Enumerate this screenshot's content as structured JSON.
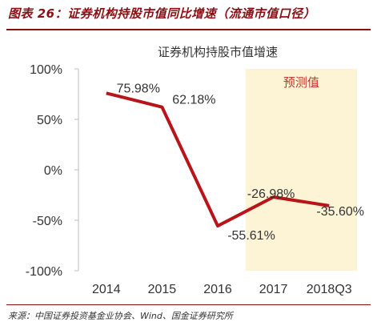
{
  "figure": {
    "title": "图表 26：证券机构持股市值同比增速（流通市值口径）",
    "source": "来源：中国证券投资基金业协会、Wind、国金证券研究所"
  },
  "chart_data": {
    "type": "line",
    "title": "证券机构持股市值增速",
    "categories": [
      "2014",
      "2015",
      "2016",
      "2017",
      "2018Q3"
    ],
    "series": [
      {
        "values": [
          75.98,
          62.18,
          -55.61,
          -26.98,
          -35.6
        ]
      }
    ],
    "data_labels": [
      "75.98%",
      "62.18%",
      "-55.61%",
      "-26.98%",
      "-35.60%"
    ],
    "y_ticks": [
      100,
      50,
      0,
      -50,
      -100
    ],
    "y_tick_labels": [
      "100%",
      "50%",
      "0%",
      "-50%",
      "-100%"
    ],
    "ylim": [
      -100,
      100
    ],
    "forecast_label": "预测值",
    "forecast_start_index": 3,
    "grid": false,
    "legend": "none",
    "colors": {
      "line": "#b8141a",
      "forecast_bg": "#fdf3d5",
      "forecast_text": "#c0392b"
    }
  }
}
